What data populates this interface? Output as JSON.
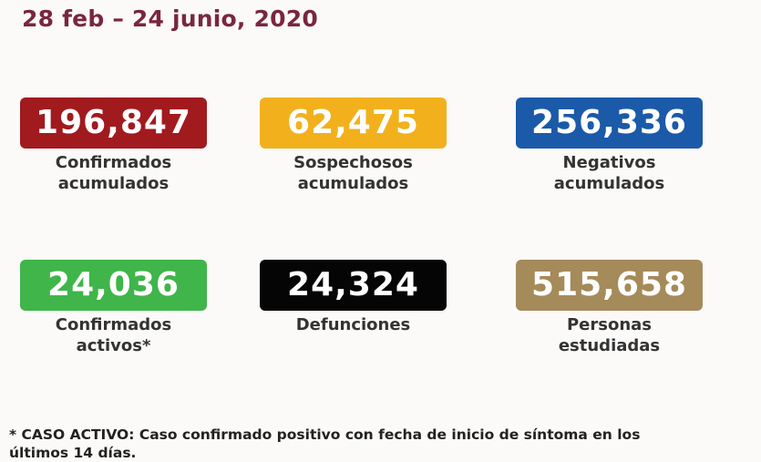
{
  "header": {
    "title": "28 feb – 24 junio, 2020"
  },
  "cards": [
    {
      "value": "196,847",
      "color": "#a11a1e",
      "label": [
        "Confirmados",
        "acumulados"
      ]
    },
    {
      "value": "62,475",
      "color": "#f2b11c",
      "label": [
        "Sospechosos",
        "acumulados"
      ]
    },
    {
      "value": "256,336",
      "color": "#1b5aa8",
      "label": [
        "Negativos",
        "acumulados"
      ]
    },
    {
      "value": "24,036",
      "color": "#3fb54a",
      "label": [
        "Confirmados",
        "activos*"
      ]
    },
    {
      "value": "24,324",
      "color": "#050505",
      "label": [
        "Defunciones"
      ]
    },
    {
      "value": "515,658",
      "color": "#a58a5a",
      "label": [
        "Personas",
        "estudiadas"
      ]
    }
  ],
  "footnote": [
    "* CASO ACTIVO: Caso confirmado positivo con fecha de inicio de síntoma en los",
    "últimos 14 días."
  ]
}
